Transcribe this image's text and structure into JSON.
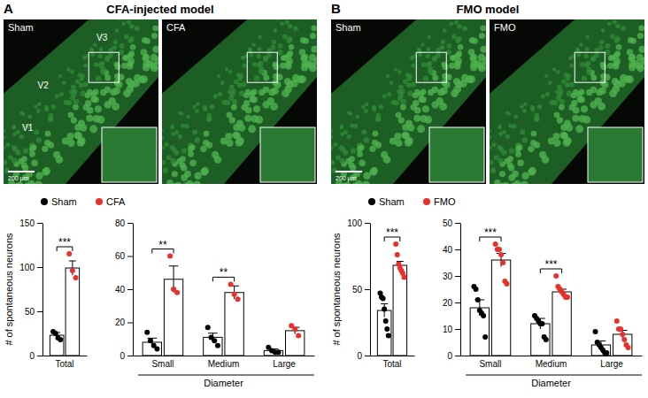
{
  "panels": [
    {
      "label": "A",
      "title": "CFA-injected model",
      "images": [
        {
          "label": "Sham",
          "regions": [
            "V3",
            "V2",
            "V1"
          ],
          "scale_bar": "200 μm"
        },
        {
          "label": "CFA"
        }
      ]
    },
    {
      "label": "B",
      "title": "FMO model",
      "images": [
        {
          "label": "Sham",
          "scale_bar": "200 μm"
        },
        {
          "label": "FMO"
        }
      ]
    }
  ],
  "chart_data": [
    {
      "type": "bar",
      "ylabel": "# of spontaneous neurons",
      "legend": "top",
      "categories": [
        "Total"
      ],
      "ylim": [
        0,
        150
      ],
      "yticks": [
        0,
        50,
        100,
        150
      ],
      "significance": [
        "***"
      ],
      "series": [
        {
          "name": "Sham",
          "color": "#000000",
          "values": [
            23
          ],
          "errors": [
            3
          ],
          "points": [
            [
              27,
              25,
              20,
              18
            ]
          ]
        },
        {
          "name": "CFA",
          "color": "#e8312b",
          "values": [
            99
          ],
          "errors": [
            8
          ],
          "points": [
            [
              115,
              96,
              88
            ]
          ]
        }
      ]
    },
    {
      "type": "bar",
      "xlabel": "Diameter",
      "categories": [
        "Small",
        "Medium",
        "Large"
      ],
      "ylim": [
        0,
        80
      ],
      "yticks": [
        0,
        20,
        40,
        60,
        80
      ],
      "significance": [
        "**",
        "**",
        null
      ],
      "series": [
        {
          "color": "#000000",
          "values": [
            8,
            11,
            3
          ],
          "errors": [
            2.5,
            2.5,
            1
          ],
          "points": [
            [
              14,
              9,
              6,
              4
            ],
            [
              17,
              11,
              9,
              6
            ],
            [
              5,
              3,
              2,
              2
            ]
          ]
        },
        {
          "color": "#e8312b",
          "values": [
            46,
            38,
            15
          ],
          "errors": [
            8,
            4,
            2
          ],
          "points": [
            [
              60,
              40,
              38
            ],
            [
              43,
              37,
              34
            ],
            [
              18,
              16,
              12
            ]
          ]
        }
      ]
    },
    {
      "type": "bar",
      "ylabel": "# of spontaneous neurons",
      "legend": "top",
      "categories": [
        "Total"
      ],
      "ylim": [
        0,
        100
      ],
      "yticks": [
        0,
        50,
        100
      ],
      "significance": [
        "***"
      ],
      "series": [
        {
          "name": "Sham",
          "color": "#000000",
          "values": [
            34
          ],
          "errors": [
            5
          ],
          "points": [
            [
              47,
              44,
              43,
              35,
              26,
              20,
              15
            ]
          ]
        },
        {
          "name": "FMO",
          "color": "#e8312b",
          "values": [
            68
          ],
          "errors": [
            3
          ],
          "points": [
            [
              84,
              76,
              69,
              66,
              64,
              62,
              59
            ]
          ]
        }
      ]
    },
    {
      "type": "bar",
      "xlabel": "Diameter",
      "categories": [
        "Small",
        "Medium",
        "Large"
      ],
      "ylim": [
        0,
        50
      ],
      "yticks": [
        0,
        10,
        20,
        30,
        40,
        50
      ],
      "significance": [
        "***",
        "***",
        null
      ],
      "series": [
        {
          "color": "#000000",
          "values": [
            18,
            12,
            4
          ],
          "errors": [
            3,
            2,
            1.5
          ],
          "points": [
            [
              26,
              25,
              21,
              17,
              16,
              15,
              7
            ],
            [
              15,
              14,
              13,
              12,
              12,
              7,
              6
            ],
            [
              9,
              5,
              4,
              3,
              2,
              1,
              1
            ]
          ]
        },
        {
          "color": "#e8312b",
          "values": [
            36,
            24,
            8
          ],
          "errors": [
            2.5,
            1,
            1.5
          ],
          "points": [
            [
              42,
              40,
              40,
              38,
              35,
              28,
              27
            ],
            [
              30,
              26,
              25,
              24,
              23,
              22,
              22
            ],
            [
              13,
              10,
              10,
              8,
              6,
              4,
              3
            ]
          ]
        }
      ]
    }
  ]
}
